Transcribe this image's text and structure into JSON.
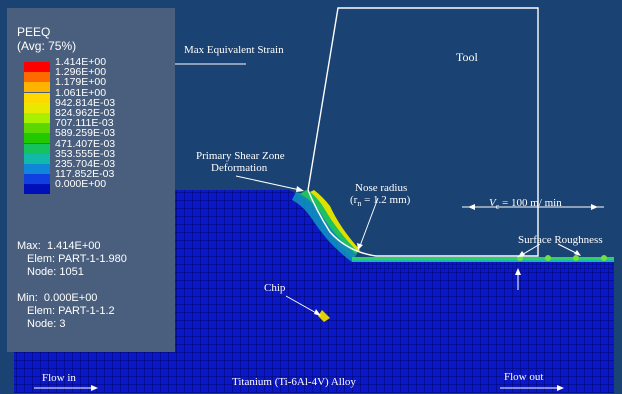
{
  "legend": {
    "title": "PEEQ",
    "subtitle": "(Avg: 75%)",
    "colors": [
      "#ff0000",
      "#ff6a00",
      "#ffb300",
      "#ffd800",
      "#e8e800",
      "#a8f000",
      "#5ad800",
      "#22c800",
      "#16c25c",
      "#12b8a8",
      "#1086d8",
      "#1040e0",
      "#0010b8"
    ],
    "values": [
      "1.414E+00",
      "1.296E+00",
      "1.179E+00",
      "1.061E+00",
      "942.814E-03",
      "824.962E-03",
      "707.111E-03",
      "589.259E-03",
      "471.407E-03",
      "353.555E-03",
      "235.704E-03",
      "117.852E-03",
      "0.000E+00"
    ],
    "max": {
      "label": "Max:",
      "value": "1.414E+00",
      "elem": "Elem: PART-1-1.980",
      "node": "Node: 1051"
    },
    "min": {
      "label": "Min:",
      "value": "0.000E+00",
      "elem": "Elem: PART-1-1.2",
      "node": "Node: 3"
    }
  },
  "annotations": {
    "max_strain": "Max Equivalent Strain",
    "tool": "Tool",
    "primary_shear_1": "Primary Shear Zone",
    "primary_shear_2": "Deformation",
    "nose_radius_1": "Nose radius",
    "nose_radius_2_pre": "(r",
    "nose_radius_2_sub": "n",
    "nose_radius_2_post": " = 1.2 mm)",
    "velocity_pre": "V",
    "velocity_sub": "c",
    "velocity_post": " = 100 m/ min",
    "surface_roughness": "Surface Roughness",
    "chip": "Chip",
    "material": "Titanium (Ti-6Al-4V) Alloy",
    "flow_in": "Flow in",
    "flow_out": "Flow out"
  },
  "colors": {
    "background": "#1a4272",
    "mesh_blue": "#0a18c8",
    "mesh_line": "#000050",
    "panel": "#4a5f7d",
    "tool_line": "#ffffff"
  }
}
